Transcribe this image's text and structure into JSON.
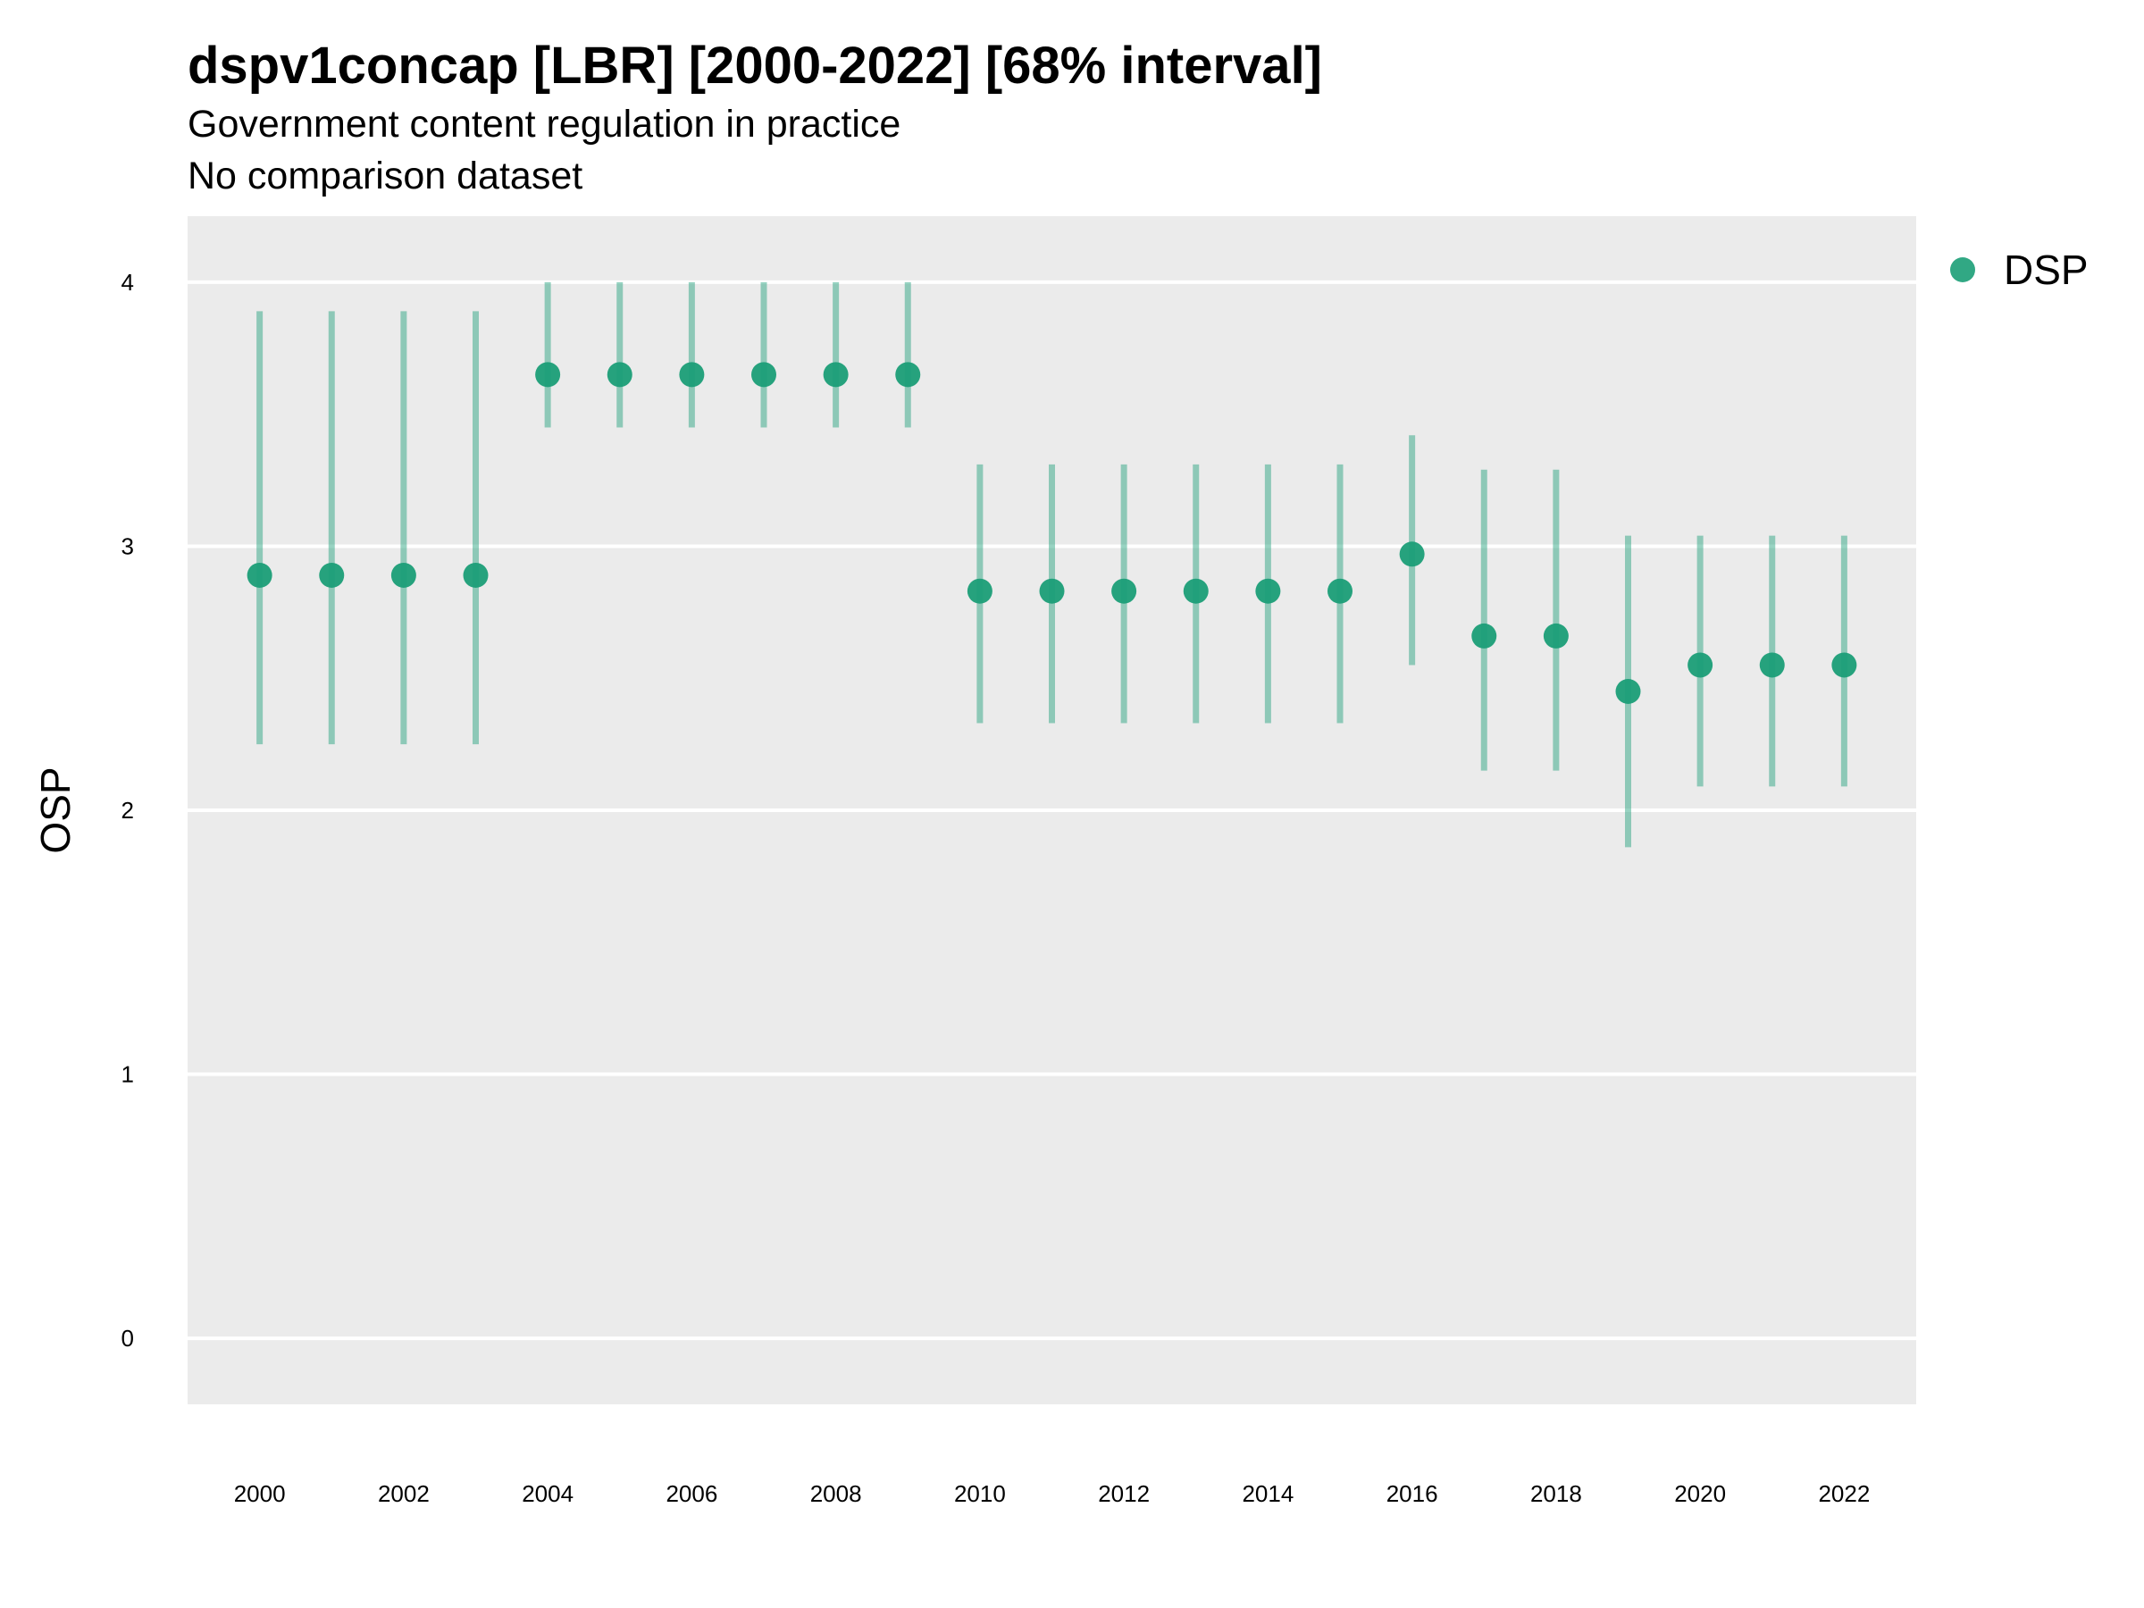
{
  "title": "dspv1concap [LBR] [2000-2022] [68% interval]",
  "subtitle": "Government content regulation in practice",
  "caption": "No comparison dataset",
  "chart_data": {
    "type": "scatter",
    "title": "dspv1concap [LBR] [2000-2022] [68% interval]",
    "subtitle": "Government content regulation in practice",
    "caption": "No comparison dataset",
    "xlabel": "",
    "ylabel": "OSP",
    "xlim": [
      1999,
      2023
    ],
    "ylim": [
      -0.25,
      4.25
    ],
    "x_ticks": [
      2000,
      2002,
      2004,
      2006,
      2008,
      2010,
      2012,
      2014,
      2016,
      2018,
      2020,
      2022
    ],
    "y_ticks": [
      0,
      1,
      2,
      3,
      4
    ],
    "grid": true,
    "legend_position": "right",
    "series": [
      {
        "name": "DSP",
        "color": "#1b9e77",
        "points": [
          {
            "x": 2000,
            "y": 2.89,
            "lo": 2.25,
            "hi": 3.89
          },
          {
            "x": 2001,
            "y": 2.89,
            "lo": 2.25,
            "hi": 3.89
          },
          {
            "x": 2002,
            "y": 2.89,
            "lo": 2.25,
            "hi": 3.89
          },
          {
            "x": 2003,
            "y": 2.89,
            "lo": 2.25,
            "hi": 3.89
          },
          {
            "x": 2004,
            "y": 3.65,
            "lo": 3.45,
            "hi": 4.0
          },
          {
            "x": 2005,
            "y": 3.65,
            "lo": 3.45,
            "hi": 4.0
          },
          {
            "x": 2006,
            "y": 3.65,
            "lo": 3.45,
            "hi": 4.0
          },
          {
            "x": 2007,
            "y": 3.65,
            "lo": 3.45,
            "hi": 4.0
          },
          {
            "x": 2008,
            "y": 3.65,
            "lo": 3.45,
            "hi": 4.0
          },
          {
            "x": 2009,
            "y": 3.65,
            "lo": 3.45,
            "hi": 4.0
          },
          {
            "x": 2010,
            "y": 2.83,
            "lo": 2.33,
            "hi": 3.31
          },
          {
            "x": 2011,
            "y": 2.83,
            "lo": 2.33,
            "hi": 3.31
          },
          {
            "x": 2012,
            "y": 2.83,
            "lo": 2.33,
            "hi": 3.31
          },
          {
            "x": 2013,
            "y": 2.83,
            "lo": 2.33,
            "hi": 3.31
          },
          {
            "x": 2014,
            "y": 2.83,
            "lo": 2.33,
            "hi": 3.31
          },
          {
            "x": 2015,
            "y": 2.83,
            "lo": 2.33,
            "hi": 3.31
          },
          {
            "x": 2016,
            "y": 2.97,
            "lo": 2.55,
            "hi": 3.42
          },
          {
            "x": 2017,
            "y": 2.66,
            "lo": 2.15,
            "hi": 3.29
          },
          {
            "x": 2018,
            "y": 2.66,
            "lo": 2.15,
            "hi": 3.29
          },
          {
            "x": 2019,
            "y": 2.45,
            "lo": 1.86,
            "hi": 3.04
          },
          {
            "x": 2020,
            "y": 2.55,
            "lo": 2.09,
            "hi": 3.04
          },
          {
            "x": 2021,
            "y": 2.55,
            "lo": 2.09,
            "hi": 3.04
          },
          {
            "x": 2022,
            "y": 2.55,
            "lo": 2.09,
            "hi": 3.04
          }
        ]
      }
    ]
  }
}
